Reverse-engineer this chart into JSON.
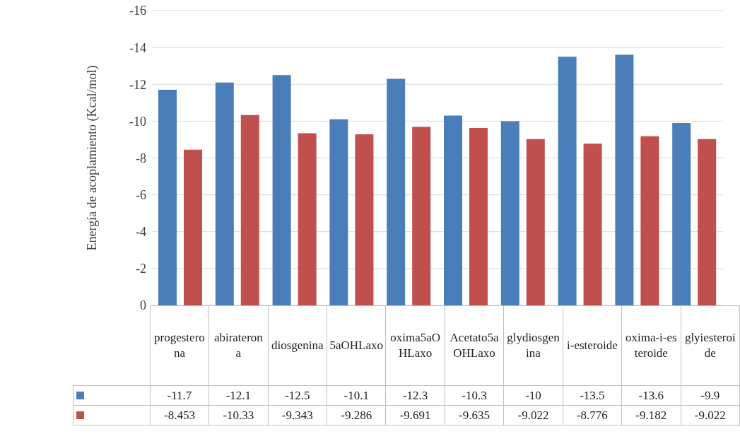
{
  "chart_data": {
    "type": "bar",
    "ylabel": "Energía de acoplamiento (Kcal/mol)",
    "categories": [
      "progesterona",
      "abiraterona",
      "diosgenina",
      "5aOHLaxo",
      "oxima5aOHLaxo",
      "Acetato5aOHLaxo",
      "glydiosgenina",
      "i-esteroide",
      "oxima-i-esteroide",
      "glyiesteroide"
    ],
    "series": [
      {
        "color": "#4a7ebb",
        "values": [
          -11.7,
          -12.1,
          -12.5,
          -10.1,
          -12.3,
          -10.3,
          -10,
          -13.5,
          -13.6,
          -9.9
        ]
      },
      {
        "color": "#c0504d",
        "values": [
          -8.453,
          -10.33,
          -9.343,
          -9.286,
          -9.691,
          -9.635,
          -9.022,
          -8.776,
          -9.182,
          -9.022
        ]
      }
    ],
    "ylim": [
      0,
      -16
    ],
    "yticks": [
      0,
      -2,
      -4,
      -6,
      -8,
      -10,
      -12,
      -14,
      -16
    ],
    "grid": "y",
    "data_labels": true
  }
}
